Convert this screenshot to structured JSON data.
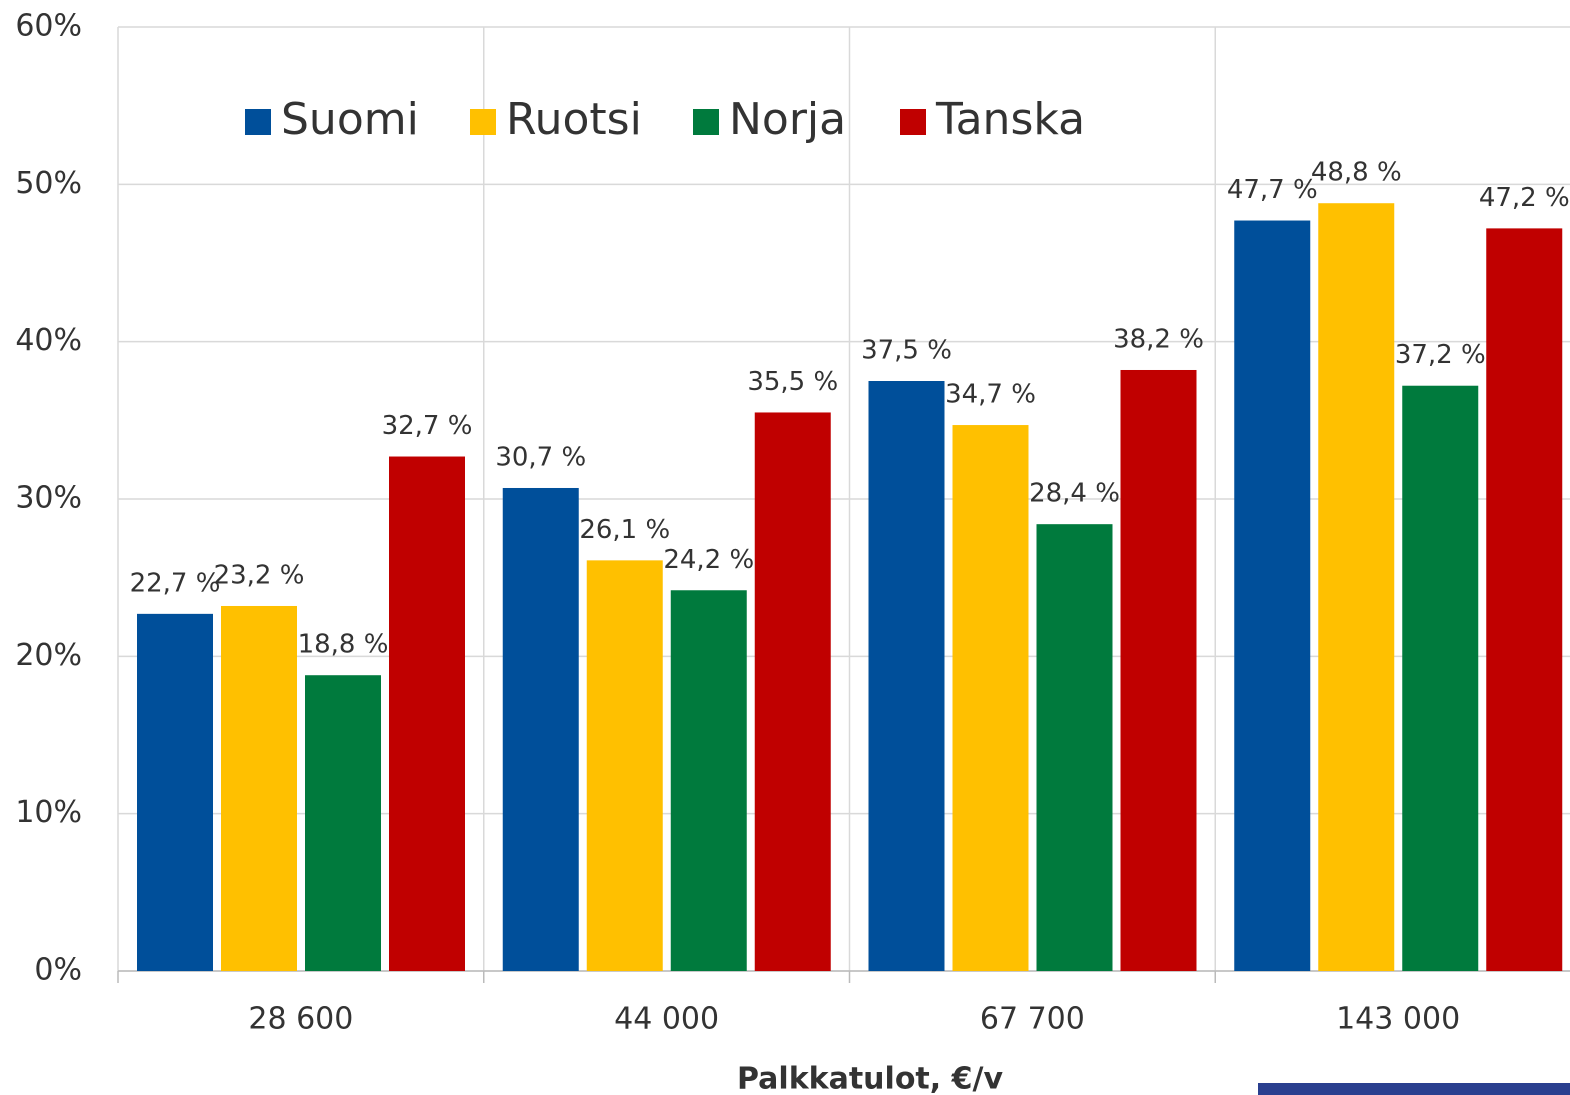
{
  "chart_data": {
    "type": "bar",
    "categories": [
      "28 600",
      "44 000",
      "67 700",
      "143 000"
    ],
    "x_label": "Palkkatulot, €/v",
    "series": [
      {
        "name": "Suomi",
        "color": "#004f9a",
        "values": [
          22.7,
          30.7,
          37.5,
          47.7
        ],
        "value_labels": [
          "22,7 %",
          "30,7 %",
          "37,5 %",
          "47,7 %"
        ]
      },
      {
        "name": "Ruotsi",
        "color": "#ffc000",
        "values": [
          23.2,
          26.1,
          34.7,
          48.8
        ],
        "value_labels": [
          "23,2 %",
          "26,1 %",
          "34,7 %",
          "48,8 %"
        ]
      },
      {
        "name": "Norja",
        "color": "#007a3d",
        "values": [
          18.8,
          24.2,
          28.4,
          37.2
        ],
        "value_labels": [
          "18,8 %",
          "24,2 %",
          "28,4 %",
          "37,2 %"
        ]
      },
      {
        "name": "Tanska",
        "color": "#c00000",
        "values": [
          32.7,
          35.5,
          38.2,
          47.2
        ],
        "value_labels": [
          "32,7 %",
          "35,5 %",
          "38,2 %",
          "47,2 %"
        ]
      }
    ],
    "ylim": [
      0,
      60
    ],
    "yticks": [
      {
        "value": 0,
        "label": "0%"
      },
      {
        "value": 10,
        "label": "10%"
      },
      {
        "value": 20,
        "label": "20%"
      },
      {
        "value": 30,
        "label": "30%"
      },
      {
        "value": 40,
        "label": "40%"
      },
      {
        "value": 50,
        "label": "50%"
      },
      {
        "value": 60,
        "label": "60%"
      }
    ],
    "grid": true,
    "legend": "top"
  }
}
